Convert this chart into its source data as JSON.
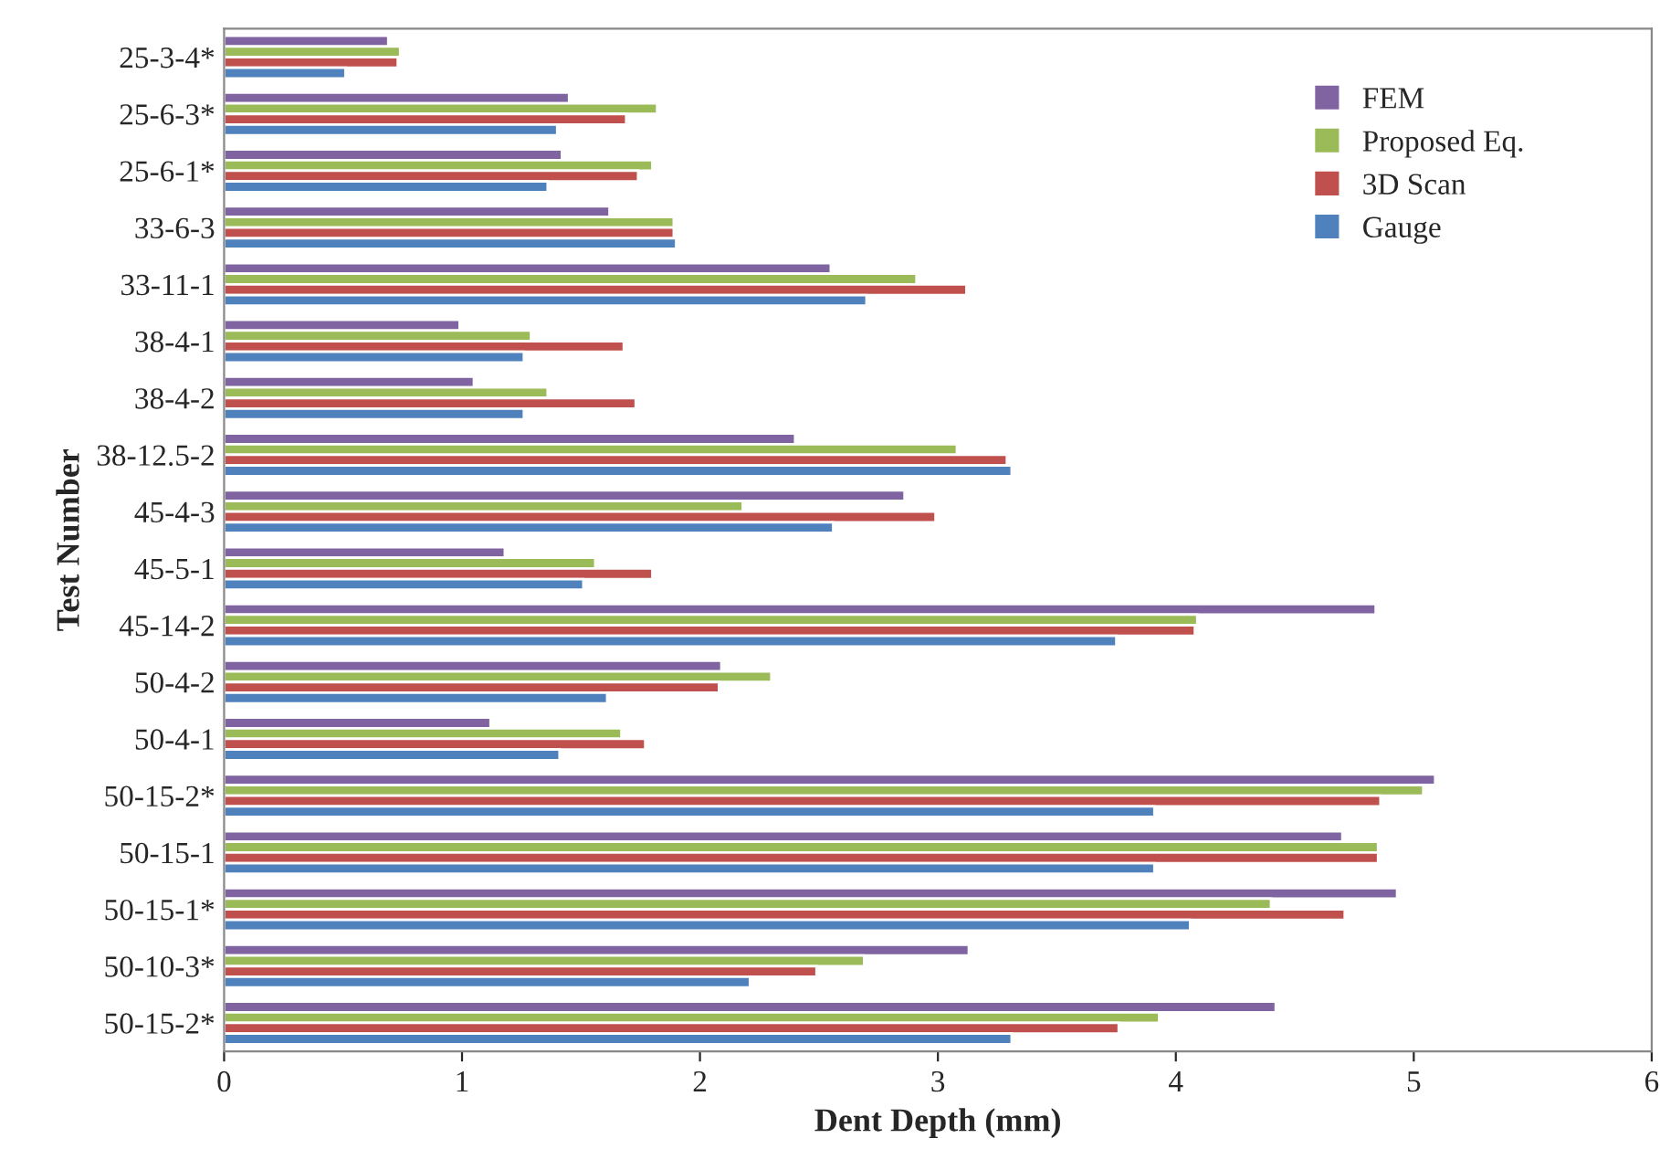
{
  "chart_data": {
    "type": "bar",
    "orientation": "horizontal",
    "xlabel": "Dent Depth (mm)",
    "ylabel": "Test Number",
    "categories": [
      "25-3-4*",
      "25-6-3*",
      "25-6-1*",
      "33-6-3",
      "33-11-1",
      "38-4-1",
      "38-4-2",
      "38-12.5-2",
      "45-4-3",
      "45-5-1",
      "45-14-2",
      "50-4-2",
      "50-4-1",
      "50-15-2*",
      "50-15-1",
      "50-15-1*",
      "50-10-3*",
      "50-15-2*"
    ],
    "series": [
      {
        "name": "FEM",
        "color": "#8064a2",
        "values": [
          0.69,
          1.45,
          1.42,
          1.62,
          2.55,
          0.99,
          1.05,
          2.4,
          2.86,
          1.18,
          4.84,
          2.09,
          1.12,
          5.09,
          4.7,
          4.93,
          3.13,
          4.42
        ]
      },
      {
        "name": "Proposed Eq.",
        "color": "#9bbb59",
        "values": [
          0.74,
          1.82,
          1.8,
          1.89,
          2.91,
          1.29,
          1.36,
          3.08,
          2.18,
          1.56,
          4.09,
          2.3,
          1.67,
          5.04,
          4.85,
          4.4,
          2.69,
          3.93
        ]
      },
      {
        "name": "3D Scan",
        "color": "#c0504d",
        "values": [
          0.73,
          1.69,
          1.74,
          1.89,
          3.12,
          1.68,
          1.73,
          3.29,
          2.99,
          1.8,
          4.08,
          2.08,
          1.77,
          4.86,
          4.85,
          4.71,
          2.49,
          3.76
        ]
      },
      {
        "name": "Gauge",
        "color": "#4f81bd",
        "values": [
          0.51,
          1.4,
          1.36,
          1.9,
          2.7,
          1.26,
          1.26,
          3.31,
          2.56,
          1.51,
          3.75,
          1.61,
          1.41,
          3.91,
          3.91,
          4.06,
          2.21,
          3.31
        ]
      }
    ],
    "xlim": [
      0,
      6
    ],
    "xticks": [
      0,
      1,
      2,
      3,
      4,
      5,
      6
    ],
    "grid": false,
    "legend": "top right"
  }
}
